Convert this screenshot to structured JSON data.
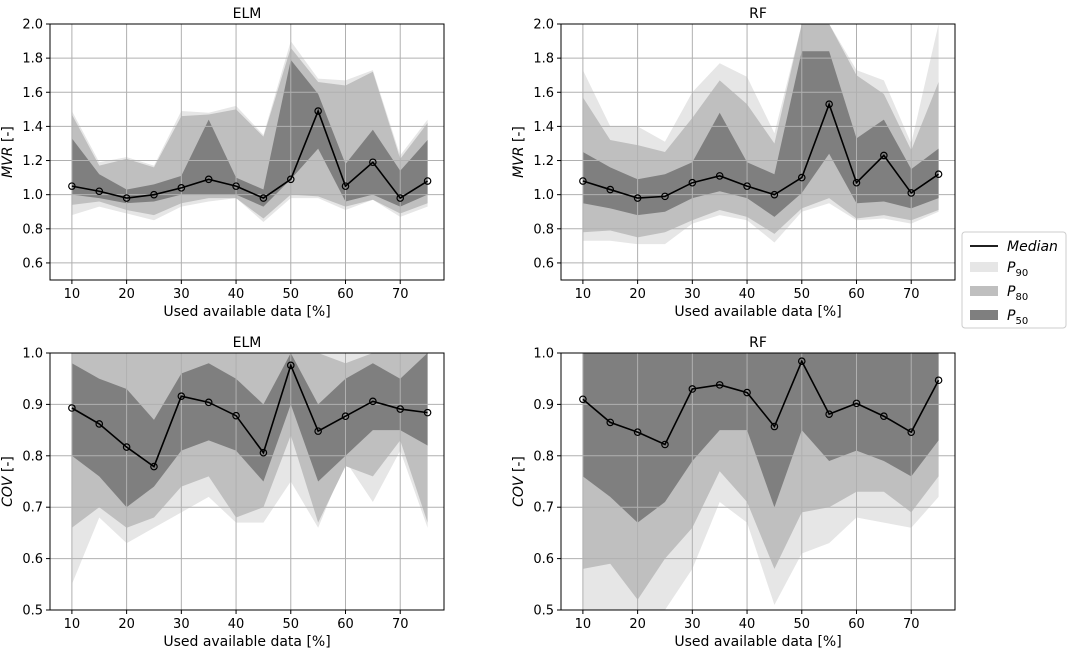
{
  "chart_data": [
    {
      "type": "area",
      "title": "ELM",
      "xlabel": "Used available data [%]",
      "ylabel": "MVR [-]",
      "ylabel_var": "MVR",
      "ylabel_unit": " [-]",
      "xlim": [
        6,
        78
      ],
      "ylim": [
        0.5,
        2.0
      ],
      "xticks": [
        "10",
        "20",
        "30",
        "40",
        "50",
        "60",
        "70"
      ],
      "xtick_values": [
        10,
        20,
        30,
        40,
        50,
        60,
        70
      ],
      "yticks": [
        "0.6",
        "0.8",
        "1.0",
        "1.2",
        "1.4",
        "1.6",
        "1.8",
        "2.0"
      ],
      "ytick_values": [
        0.6,
        0.8,
        1.0,
        1.2,
        1.4,
        1.6,
        1.8,
        2.0
      ],
      "x": [
        10,
        15,
        20,
        25,
        30,
        35,
        40,
        45,
        50,
        55,
        60,
        65,
        70,
        75
      ],
      "median": [
        1.05,
        1.02,
        0.98,
        1.0,
        1.04,
        1.09,
        1.05,
        0.98,
        1.09,
        1.49,
        1.05,
        1.19,
        0.98,
        1.08
      ],
      "p90_low": [
        0.88,
        0.93,
        0.89,
        0.85,
        0.93,
        0.96,
        0.98,
        0.84,
        0.98,
        0.98,
        0.91,
        0.97,
        0.87,
        0.93
      ],
      "p90_high": [
        1.49,
        1.19,
        1.22,
        1.17,
        1.49,
        1.48,
        1.52,
        1.35,
        1.9,
        1.68,
        1.67,
        1.73,
        1.23,
        1.44
      ],
      "p80_low": [
        0.94,
        0.96,
        0.91,
        0.88,
        0.95,
        0.98,
        0.98,
        0.86,
        1.0,
        0.99,
        0.93,
        0.97,
        0.89,
        0.95
      ],
      "p80_high": [
        1.47,
        1.17,
        1.21,
        1.16,
        1.46,
        1.47,
        1.5,
        1.34,
        1.86,
        1.66,
        1.64,
        1.72,
        1.21,
        1.42
      ],
      "p50_low": [
        1.0,
        0.98,
        0.95,
        0.96,
        1.0,
        1.0,
        1.0,
        0.93,
        1.09,
        1.27,
        0.96,
        1.0,
        0.93,
        1.0
      ],
      "p50_high": [
        1.33,
        1.12,
        1.03,
        1.06,
        1.11,
        1.44,
        1.1,
        1.03,
        1.79,
        1.59,
        1.18,
        1.38,
        1.14,
        1.32
      ]
    },
    {
      "type": "area",
      "title": "RF",
      "xlabel": "Used available data [%]",
      "ylabel": "MVR [-]",
      "ylabel_var": "MVR",
      "ylabel_unit": " [-]",
      "xlim": [
        6,
        78
      ],
      "ylim": [
        0.5,
        2.0
      ],
      "xticks": [
        "10",
        "20",
        "30",
        "40",
        "50",
        "60",
        "70"
      ],
      "xtick_values": [
        10,
        20,
        30,
        40,
        50,
        60,
        70
      ],
      "yticks": [
        "0.6",
        "0.8",
        "1.0",
        "1.2",
        "1.4",
        "1.6",
        "1.8",
        "2.0"
      ],
      "ytick_values": [
        0.6,
        0.8,
        1.0,
        1.2,
        1.4,
        1.6,
        1.8,
        2.0
      ],
      "x": [
        10,
        15,
        20,
        25,
        30,
        35,
        40,
        45,
        50,
        55,
        60,
        65,
        70,
        75
      ],
      "median": [
        1.08,
        1.03,
        0.98,
        0.99,
        1.07,
        1.11,
        1.05,
        1.0,
        1.1,
        1.53,
        1.07,
        1.23,
        1.01,
        1.12
      ],
      "p90_low": [
        0.73,
        0.73,
        0.71,
        0.71,
        0.83,
        0.88,
        0.85,
        0.72,
        0.9,
        0.95,
        0.85,
        0.86,
        0.83,
        0.9
      ],
      "p90_high": [
        1.73,
        1.4,
        1.4,
        1.31,
        1.6,
        1.77,
        1.69,
        1.36,
        2.0,
        2.0,
        1.73,
        1.67,
        1.3,
        2.0
      ],
      "p80_low": [
        0.78,
        0.79,
        0.75,
        0.78,
        0.85,
        0.91,
        0.87,
        0.77,
        0.92,
        0.98,
        0.86,
        0.88,
        0.85,
        0.91
      ],
      "p80_high": [
        1.57,
        1.32,
        1.29,
        1.25,
        1.45,
        1.67,
        1.53,
        1.3,
        2.0,
        2.0,
        1.7,
        1.59,
        1.26,
        1.66
      ],
      "p50_low": [
        0.95,
        0.92,
        0.88,
        0.9,
        0.98,
        1.02,
        0.98,
        0.87,
        1.01,
        1.24,
        0.95,
        0.96,
        0.92,
        0.98
      ],
      "p50_high": [
        1.25,
        1.16,
        1.09,
        1.12,
        1.19,
        1.48,
        1.19,
        1.12,
        1.84,
        1.84,
        1.33,
        1.44,
        1.15,
        1.27
      ]
    },
    {
      "type": "area",
      "title": "ELM",
      "xlabel": "Used available data [%]",
      "ylabel": "COV [-]",
      "ylabel_var": "COV",
      "ylabel_unit": " [-]",
      "xlim": [
        6,
        78
      ],
      "ylim": [
        0.5,
        1.0
      ],
      "xticks": [
        "10",
        "20",
        "30",
        "40",
        "50",
        "60",
        "70"
      ],
      "xtick_values": [
        10,
        20,
        30,
        40,
        50,
        60,
        70
      ],
      "yticks": [
        "0.5",
        "0.6",
        "0.7",
        "0.8",
        "0.9",
        "1.0"
      ],
      "ytick_values": [
        0.5,
        0.6,
        0.7,
        0.8,
        0.9,
        1.0
      ],
      "x": [
        10,
        15,
        20,
        25,
        30,
        35,
        40,
        45,
        50,
        55,
        60,
        65,
        70,
        75
      ],
      "median": [
        0.893,
        0.862,
        0.817,
        0.779,
        0.916,
        0.904,
        0.878,
        0.806,
        0.976,
        0.848,
        0.877,
        0.906,
        0.891,
        0.884
      ],
      "p90_low": [
        0.55,
        0.68,
        0.63,
        0.66,
        0.69,
        0.72,
        0.67,
        0.67,
        0.75,
        0.66,
        0.79,
        0.71,
        0.81,
        0.66
      ],
      "p90_high": [
        1.0,
        1.0,
        1.0,
        1.0,
        1.0,
        1.0,
        1.0,
        1.0,
        1.0,
        1.0,
        1.0,
        1.0,
        1.0,
        1.0
      ],
      "p80_low": [
        0.66,
        0.7,
        0.66,
        0.68,
        0.74,
        0.76,
        0.68,
        0.7,
        0.84,
        0.67,
        0.78,
        0.76,
        0.83,
        0.67
      ],
      "p80_high": [
        1.0,
        1.0,
        1.0,
        1.0,
        1.0,
        1.0,
        1.0,
        1.0,
        1.0,
        1.0,
        0.98,
        1.0,
        1.0,
        1.0
      ],
      "p50_low": [
        0.8,
        0.76,
        0.7,
        0.74,
        0.81,
        0.83,
        0.81,
        0.75,
        0.9,
        0.75,
        0.8,
        0.85,
        0.85,
        0.82
      ],
      "p50_high": [
        0.98,
        0.95,
        0.93,
        0.87,
        0.96,
        0.98,
        0.95,
        0.9,
        1.0,
        0.9,
        0.95,
        0.98,
        0.95,
        1.0
      ]
    },
    {
      "type": "area",
      "title": "RF",
      "xlabel": "Used available data [%]",
      "ylabel": "COV [-]",
      "ylabel_var": "COV",
      "ylabel_unit": " [-]",
      "xlim": [
        6,
        78
      ],
      "ylim": [
        0.5,
        1.0
      ],
      "xticks": [
        "10",
        "20",
        "30",
        "40",
        "50",
        "60",
        "70"
      ],
      "xtick_values": [
        10,
        20,
        30,
        40,
        50,
        60,
        70
      ],
      "yticks": [
        "0.5",
        "0.6",
        "0.7",
        "0.8",
        "0.9",
        "1.0"
      ],
      "ytick_values": [
        0.5,
        0.6,
        0.7,
        0.8,
        0.9,
        1.0
      ],
      "x": [
        10,
        15,
        20,
        25,
        30,
        35,
        40,
        45,
        50,
        55,
        60,
        65,
        70,
        75
      ],
      "median": [
        0.91,
        0.865,
        0.846,
        0.822,
        0.93,
        0.938,
        0.923,
        0.857,
        0.984,
        0.881,
        0.902,
        0.877,
        0.846,
        0.947
      ],
      "p90_low": [
        0.5,
        0.5,
        0.5,
        0.5,
        0.58,
        0.71,
        0.67,
        0.51,
        0.61,
        0.63,
        0.68,
        0.67,
        0.66,
        0.72
      ],
      "p90_high": [
        1.0,
        1.0,
        1.0,
        1.0,
        1.0,
        1.0,
        1.0,
        1.0,
        1.0,
        1.0,
        1.0,
        1.0,
        1.0,
        1.0
      ],
      "p80_low": [
        0.58,
        0.59,
        0.52,
        0.6,
        0.66,
        0.77,
        0.71,
        0.58,
        0.69,
        0.7,
        0.73,
        0.73,
        0.69,
        0.76
      ],
      "p80_high": [
        1.0,
        1.0,
        1.0,
        0.96,
        1.0,
        1.0,
        1.0,
        0.97,
        1.0,
        1.0,
        0.98,
        0.97,
        0.99,
        1.0
      ],
      "p50_low": [
        0.76,
        0.72,
        0.67,
        0.71,
        0.79,
        0.85,
        0.85,
        0.7,
        0.85,
        0.79,
        0.81,
        0.79,
        0.76,
        0.83
      ],
      "p50_high": [
        1.0,
        1.0,
        1.0,
        1.0,
        1.0,
        1.0,
        1.0,
        1.0,
        1.0,
        1.0,
        1.0,
        1.0,
        1.0,
        1.0
      ]
    }
  ],
  "legend": {
    "placement": "right-center",
    "items": [
      {
        "label": "Median",
        "kind": "line",
        "color": "#000000"
      },
      {
        "label": "P",
        "sub": "90",
        "kind": "patch",
        "color": "#e6e6e6"
      },
      {
        "label": "P",
        "sub": "80",
        "kind": "patch",
        "color": "#bfbfbf"
      },
      {
        "label": "P",
        "sub": "50",
        "kind": "patch",
        "color": "#7f7f7f"
      }
    ]
  },
  "colors": {
    "p90": "#e6e6e6",
    "p80": "#bfbfbf",
    "p50": "#7f7f7f",
    "median": "#000000",
    "grid": "#b0b0b0"
  }
}
